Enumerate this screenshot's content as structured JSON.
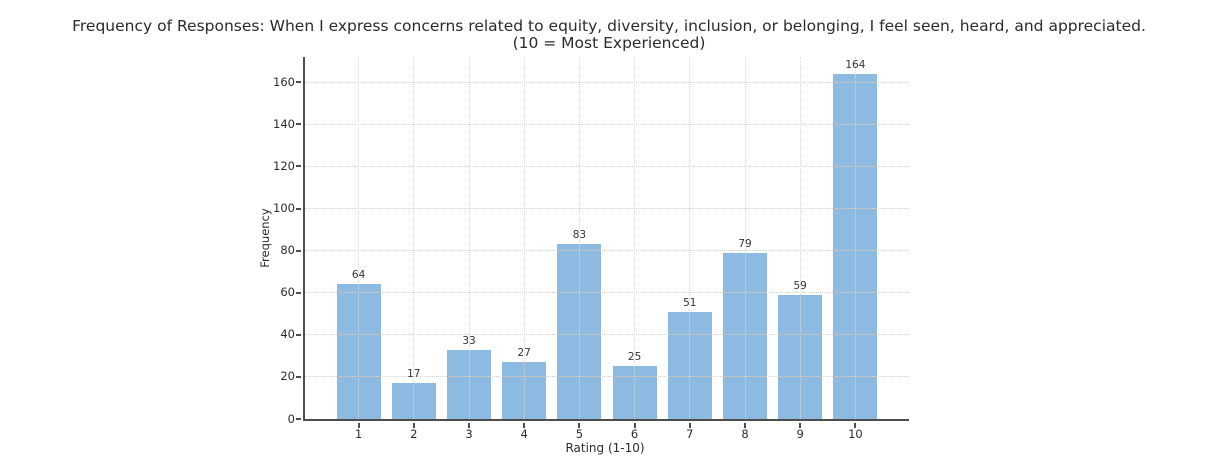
{
  "chart_data": {
    "type": "bar",
    "title": "Frequency of Responses: When I express concerns related to equity, diversity, inclusion, or belonging, I feel seen, heard, and appreciated.",
    "subtitle": "(10 = Most Experienced)",
    "categories": [
      "1",
      "2",
      "3",
      "4",
      "5",
      "6",
      "7",
      "8",
      "9",
      "10"
    ],
    "values": [
      64,
      17,
      33,
      27,
      83,
      25,
      51,
      79,
      59,
      164
    ],
    "xlabel": "Rating (1-10)",
    "ylabel": "Frequency",
    "yticks": [
      0,
      20,
      40,
      60,
      80,
      100,
      120,
      140,
      160
    ],
    "ylim": [
      0,
      172
    ],
    "grid": true,
    "grid_on_top_of_bars": true,
    "legend": "none",
    "bar_color": "#8dbae1",
    "spine_color": "#4d4d4d",
    "gridline_color": "#d5d5d5",
    "value_labels_shown": true
  }
}
